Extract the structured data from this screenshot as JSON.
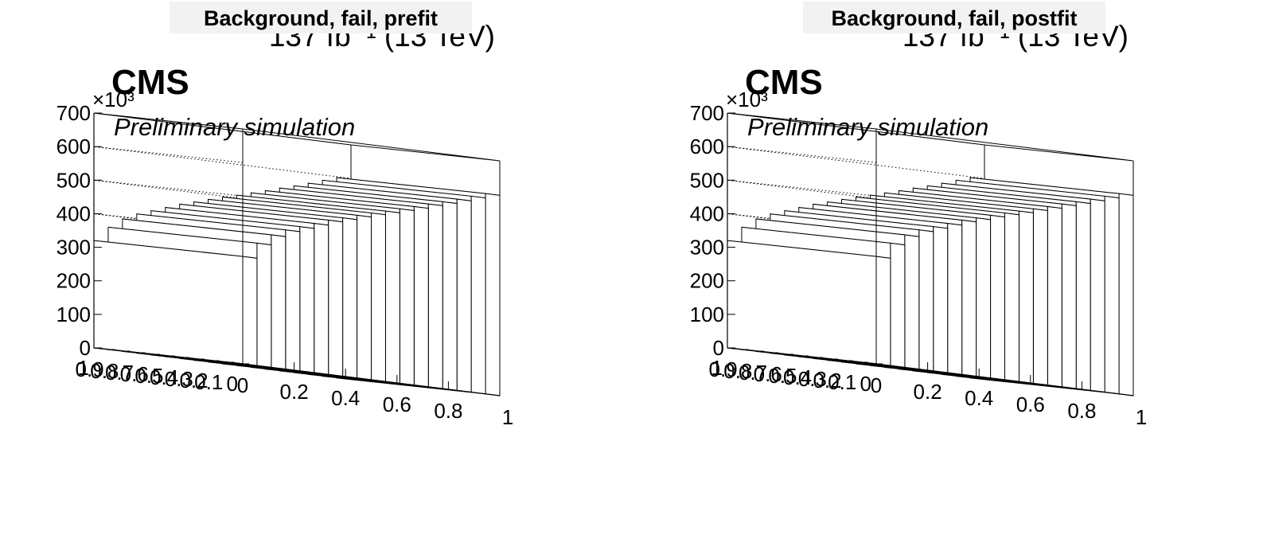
{
  "chart_data": [
    {
      "type": "bar",
      "title": "Background, fail, prefit",
      "lumi_label": "137 fb⁻¹ (13 TeV)",
      "cms_label": "CMS",
      "extra_label": "Preliminary simulation",
      "exponent_label": "×10³",
      "x_ticks": [
        "0",
        "0.2",
        "0.4",
        "0.6",
        "0.8",
        "1"
      ],
      "y_ticks": [
        "0",
        "0.1",
        "0.2",
        "0.3",
        "0.4",
        "0.5",
        "0.6",
        "0.7",
        "0.8",
        "0.9",
        "1"
      ],
      "z_ticks": [
        "0",
        "100",
        "200",
        "300",
        "400",
        "500",
        "600",
        "700"
      ],
      "xlim": [
        0,
        1
      ],
      "ylim": [
        0,
        1
      ],
      "zlim": [
        0,
        700
      ],
      "grid": true,
      "x_bins": 18,
      "values": [
        320,
        365,
        395,
        415,
        430,
        445,
        460,
        472,
        485,
        497,
        508,
        520,
        532,
        545,
        557,
        570,
        584,
        597
      ]
    },
    {
      "type": "bar",
      "title": "Background, fail, postfit",
      "lumi_label": "137 fb⁻¹ (13 TeV)",
      "cms_label": "CMS",
      "extra_label": "Preliminary simulation",
      "exponent_label": "×10³",
      "x_ticks": [
        "0",
        "0.2",
        "0.4",
        "0.6",
        "0.8",
        "1"
      ],
      "y_ticks": [
        "0",
        "0.1",
        "0.2",
        "0.3",
        "0.4",
        "0.5",
        "0.6",
        "0.7",
        "0.8",
        "0.9",
        "1"
      ],
      "z_ticks": [
        "0",
        "100",
        "200",
        "300",
        "400",
        "500",
        "600",
        "700"
      ],
      "xlim": [
        0,
        1
      ],
      "ylim": [
        0,
        1
      ],
      "zlim": [
        0,
        700
      ],
      "grid": true,
      "x_bins": 18,
      "values": [
        320,
        365,
        395,
        415,
        430,
        445,
        460,
        472,
        485,
        497,
        508,
        520,
        532,
        545,
        557,
        570,
        584,
        597
      ]
    }
  ]
}
